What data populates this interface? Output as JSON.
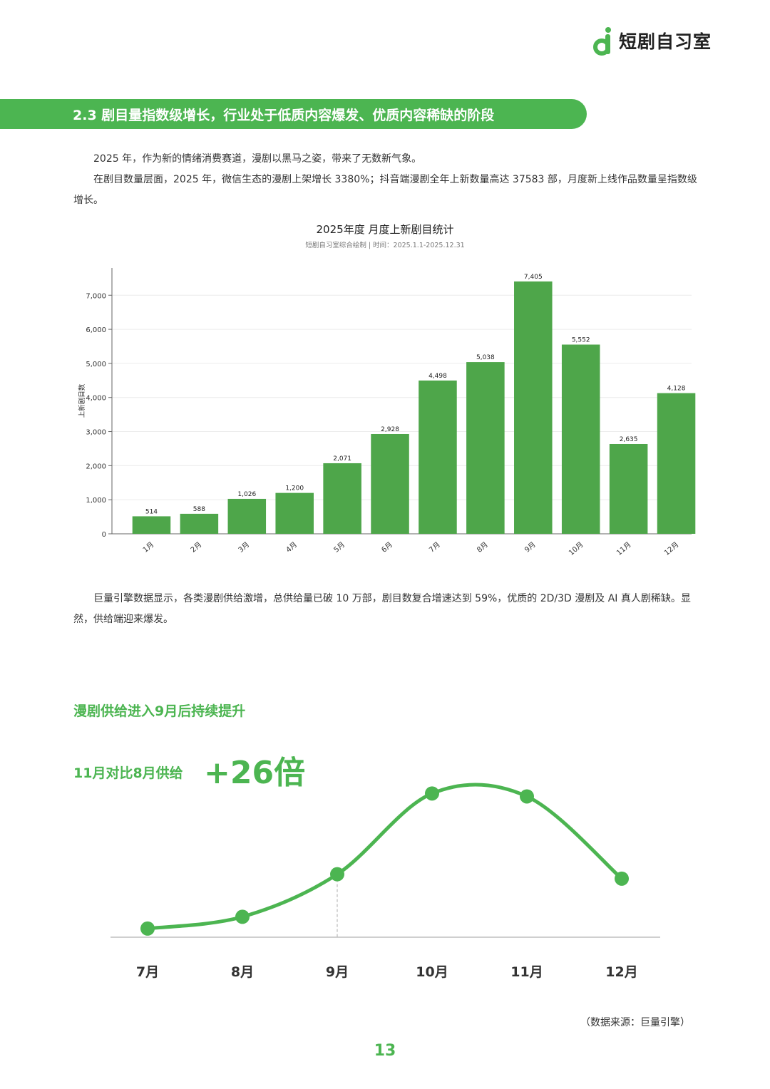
{
  "brand": {
    "name": "短剧自习室",
    "color": "#4cb551",
    "icon": "phone-d-logo-icon"
  },
  "section": {
    "title": "2.3 剧目量指数级增长，行业处于低质内容爆发、优质内容稀缺的阶段"
  },
  "intro": {
    "p1": "2025 年，作为新的情绪消费赛道，漫剧以黑马之姿，带来了无数新气象。",
    "p2": "在剧目数量层面，2025 年，微信生态的漫剧上架增长 3380%；抖音端漫剧全年上新数量高达 37583 部，月度新上线作品数量呈指数级增长。"
  },
  "chart_data": [
    {
      "type": "bar",
      "title": "2025年度 月度上新剧目统计",
      "subtitle": "短剧自习室综合绘制 | 时间：2025.1.1-2025.12.31",
      "xlabel": "",
      "ylabel": "上新剧目数",
      "categories": [
        "1月",
        "2月",
        "3月",
        "4月",
        "5月",
        "6月",
        "7月",
        "8月",
        "9月",
        "10月",
        "11月",
        "12月"
      ],
      "values": [
        514,
        588,
        1026,
        1200,
        2071,
        2928,
        4498,
        5038,
        7405,
        5552,
        2635,
        4128
      ],
      "value_labels": [
        "514",
        "588",
        "1,026",
        "1,200",
        "2,071",
        "2,928",
        "4,498",
        "5,038",
        "7,405",
        "5,552",
        "2,635",
        "4,128"
      ],
      "yticks": [
        0,
        1000,
        2000,
        3000,
        4000,
        5000,
        6000,
        7000
      ],
      "ytick_labels": [
        "0",
        "1,000",
        "2,000",
        "3,000",
        "4,000",
        "5,000",
        "6,000",
        "7,000"
      ],
      "ylim": [
        0,
        7800
      ],
      "grid": true,
      "bar_color": "#4ea64a"
    },
    {
      "type": "line",
      "title": "漫剧供给进入9月后持续提升",
      "categories": [
        "7月",
        "8月",
        "9月",
        "10月",
        "11月",
        "12月"
      ],
      "relative_values": [
        0.02,
        0.1,
        0.39,
        0.94,
        0.92,
        0.36
      ],
      "marked_category": "9月",
      "smooth": true,
      "line_color": "#4cb551"
    }
  ],
  "body2": "巨量引擎数据显示，各类漫剧供给激增，总供给量已破 10 万部，剧目数复合增速达到 59%，优质的 2D/3D 漫剧及 AI 真人剧稀缺。显然，供给端迎来爆发。",
  "highlight": {
    "label": "11月对比8月供给",
    "value": "+26倍"
  },
  "source": "（数据来源：巨量引擎）",
  "page_number": "13"
}
